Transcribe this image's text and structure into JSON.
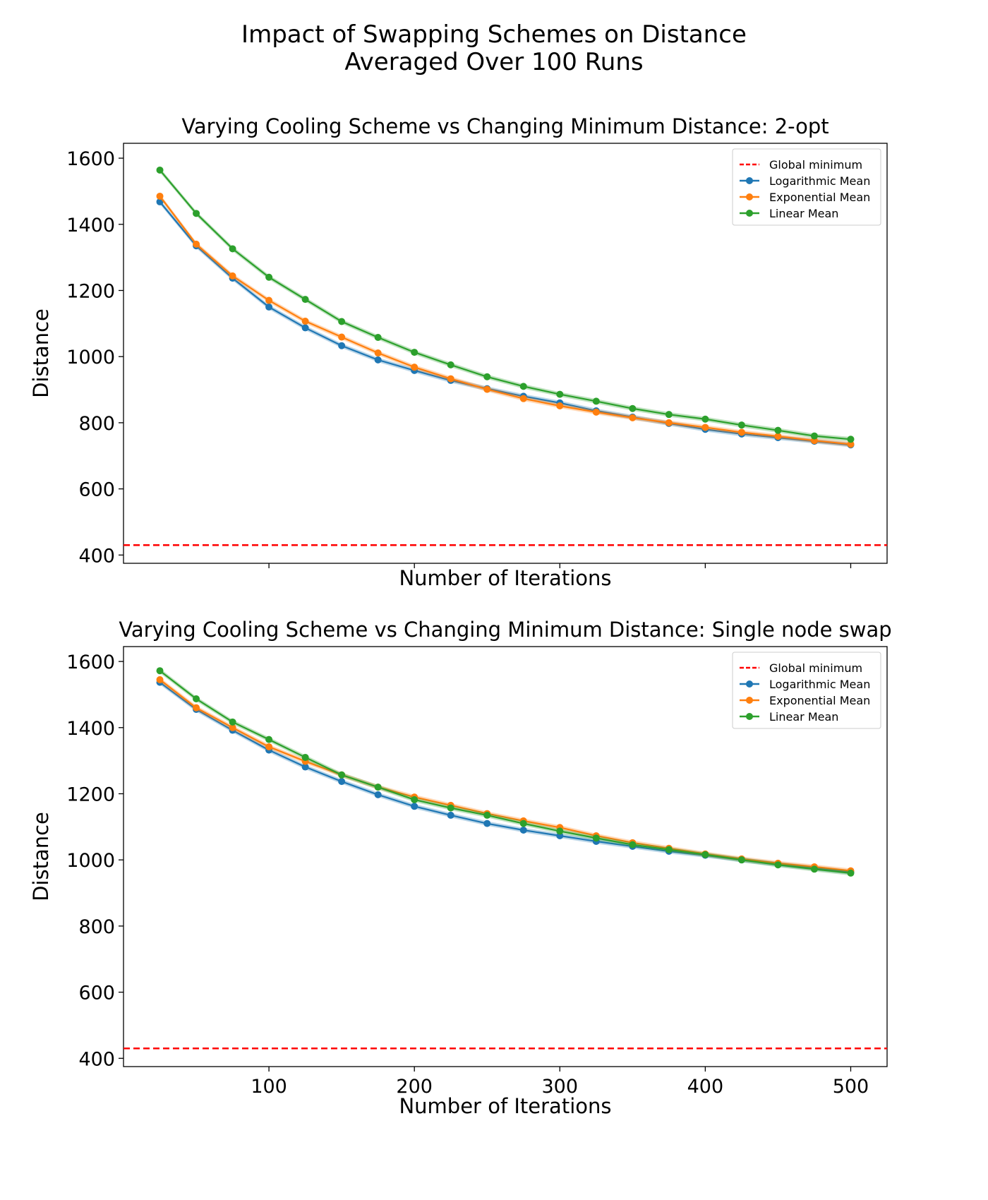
{
  "figure": {
    "suptitle_line1": "Impact of Swapping Schemes on Distance",
    "suptitle_line2": "Averaged Over 100 Runs"
  },
  "colors": {
    "logarithmic": "#1f77b4",
    "exponential": "#ff7f0e",
    "linear": "#2ca02c",
    "global_min": "#ff0000"
  },
  "chart_data": [
    {
      "type": "line",
      "title": "Varying Cooling Scheme vs Changing Minimum Distance: 2-opt",
      "xlabel": "Number of Iterations",
      "ylabel": "Distance",
      "xlim": [
        0,
        525
      ],
      "ylim": [
        375,
        1645
      ],
      "xticks": [
        100,
        200,
        300,
        400,
        500
      ],
      "show_xtick_labels": false,
      "yticks": [
        400,
        600,
        800,
        1000,
        1200,
        1400,
        1600
      ],
      "grid": false,
      "legend_position": "top-right",
      "hline": {
        "name": "Global minimum",
        "y": 430
      },
      "x": [
        25,
        50,
        75,
        100,
        125,
        150,
        175,
        200,
        225,
        250,
        275,
        300,
        325,
        350,
        375,
        400,
        425,
        450,
        475,
        500
      ],
      "series": [
        {
          "name": "Logarithmic Mean",
          "key": "logarithmic",
          "values": [
            1468,
            1335,
            1237,
            1150,
            1087,
            1033,
            990,
            958,
            928,
            903,
            880,
            860,
            836,
            817,
            798,
            780,
            766,
            755,
            744,
            733
          ]
        },
        {
          "name": "Exponential Mean",
          "key": "exponential",
          "values": [
            1485,
            1340,
            1244,
            1170,
            1107,
            1059,
            1011,
            968,
            933,
            901,
            873,
            851,
            832,
            815,
            800,
            786,
            771,
            759,
            746,
            735
          ]
        },
        {
          "name": "Linear Mean",
          "key": "linear",
          "values": [
            1564,
            1433,
            1326,
            1240,
            1173,
            1106,
            1058,
            1013,
            975,
            939,
            910,
            886,
            865,
            843,
            825,
            811,
            793,
            777,
            760,
            750
          ]
        }
      ]
    },
    {
      "type": "line",
      "title": "Varying Cooling Scheme vs Changing Minimum Distance: Single node swap",
      "xlabel": "Number of Iterations",
      "ylabel": "Distance",
      "xlim": [
        0,
        525
      ],
      "ylim": [
        375,
        1645
      ],
      "xticks": [
        100,
        200,
        300,
        400,
        500
      ],
      "show_xtick_labels": true,
      "yticks": [
        400,
        600,
        800,
        1000,
        1200,
        1400,
        1600
      ],
      "grid": false,
      "legend_position": "top-right",
      "hline": {
        "name": "Global minimum",
        "y": 430
      },
      "x": [
        25,
        50,
        75,
        100,
        125,
        150,
        175,
        200,
        225,
        250,
        275,
        300,
        325,
        350,
        375,
        400,
        425,
        450,
        475,
        500
      ],
      "series": [
        {
          "name": "Logarithmic Mean",
          "key": "logarithmic",
          "values": [
            1537,
            1455,
            1392,
            1332,
            1281,
            1237,
            1197,
            1162,
            1135,
            1110,
            1090,
            1073,
            1056,
            1041,
            1026,
            1014,
            1000,
            987,
            975,
            963
          ]
        },
        {
          "name": "Exponential Mean",
          "key": "exponential",
          "values": [
            1545,
            1460,
            1400,
            1342,
            1298,
            1257,
            1220,
            1190,
            1165,
            1140,
            1118,
            1098,
            1073,
            1052,
            1035,
            1018,
            1003,
            990,
            979,
            967
          ]
        },
        {
          "name": "Linear Mean",
          "key": "linear",
          "values": [
            1572,
            1487,
            1417,
            1364,
            1310,
            1257,
            1220,
            1182,
            1157,
            1135,
            1110,
            1087,
            1066,
            1046,
            1031,
            1016,
            1000,
            985,
            972,
            960
          ]
        }
      ]
    }
  ]
}
